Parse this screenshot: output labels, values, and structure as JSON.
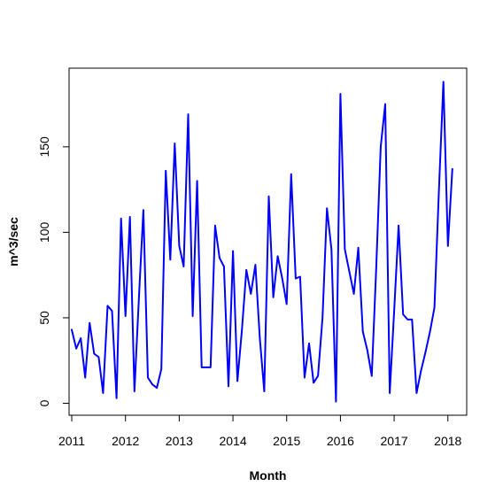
{
  "chart_data": {
    "type": "line",
    "title": "",
    "xlabel": "Month",
    "ylabel": "m^3/sec",
    "xlim": [
      2010.95,
      2018.35
    ],
    "ylim": [
      -7,
      196
    ],
    "xticks": [
      2011,
      2012,
      2013,
      2014,
      2015,
      2016,
      2017,
      2018
    ],
    "xtick_labels": [
      "2011",
      "2012",
      "2013",
      "2014",
      "2015",
      "2016",
      "2017",
      "2018"
    ],
    "yticks": [
      0,
      50,
      100,
      150
    ],
    "ytick_labels": [
      "0",
      "50",
      "100",
      "150"
    ],
    "grid": false,
    "legend": "none",
    "series": [
      {
        "color": "#0000ff",
        "points": [
          [
            2011.0,
            43
          ],
          [
            2011.083,
            32
          ],
          [
            2011.167,
            38
          ],
          [
            2011.25,
            15
          ],
          [
            2011.333,
            47
          ],
          [
            2011.417,
            29
          ],
          [
            2011.5,
            27
          ],
          [
            2011.583,
            6
          ],
          [
            2011.667,
            57
          ],
          [
            2011.75,
            54
          ],
          [
            2011.833,
            3
          ],
          [
            2011.917,
            108
          ],
          [
            2012.0,
            51
          ],
          [
            2012.083,
            109
          ],
          [
            2012.167,
            7
          ],
          [
            2012.25,
            62
          ],
          [
            2012.333,
            113
          ],
          [
            2012.417,
            15
          ],
          [
            2012.5,
            11
          ],
          [
            2012.583,
            9
          ],
          [
            2012.667,
            20
          ],
          [
            2012.75,
            136
          ],
          [
            2012.833,
            84
          ],
          [
            2012.917,
            152
          ],
          [
            2013.0,
            92
          ],
          [
            2013.083,
            80
          ],
          [
            2013.167,
            169
          ],
          [
            2013.25,
            51
          ],
          [
            2013.333,
            130
          ],
          [
            2013.417,
            21
          ],
          [
            2013.5,
            21
          ],
          [
            2013.583,
            21
          ],
          [
            2013.667,
            104
          ],
          [
            2013.75,
            85
          ],
          [
            2013.833,
            80
          ],
          [
            2013.917,
            10
          ],
          [
            2014.0,
            89
          ],
          [
            2014.083,
            13
          ],
          [
            2014.167,
            43
          ],
          [
            2014.25,
            78
          ],
          [
            2014.333,
            64
          ],
          [
            2014.417,
            81
          ],
          [
            2014.5,
            38
          ],
          [
            2014.583,
            7
          ],
          [
            2014.667,
            121
          ],
          [
            2014.75,
            62
          ],
          [
            2014.833,
            86
          ],
          [
            2014.917,
            73
          ],
          [
            2015.0,
            58
          ],
          [
            2015.083,
            134
          ],
          [
            2015.167,
            73
          ],
          [
            2015.25,
            74
          ],
          [
            2015.333,
            15
          ],
          [
            2015.417,
            35
          ],
          [
            2015.5,
            12
          ],
          [
            2015.583,
            16
          ],
          [
            2015.667,
            50
          ],
          [
            2015.75,
            114
          ],
          [
            2015.833,
            90
          ],
          [
            2015.917,
            1
          ],
          [
            2016.0,
            181
          ],
          [
            2016.083,
            90
          ],
          [
            2016.167,
            77
          ],
          [
            2016.25,
            64
          ],
          [
            2016.333,
            91
          ],
          [
            2016.417,
            42
          ],
          [
            2016.5,
            31
          ],
          [
            2016.583,
            16
          ],
          [
            2016.667,
            80
          ],
          [
            2016.75,
            150
          ],
          [
            2016.833,
            175
          ],
          [
            2016.917,
            6
          ],
          [
            2017.0,
            54
          ],
          [
            2017.083,
            104
          ],
          [
            2017.167,
            52
          ],
          [
            2017.25,
            49
          ],
          [
            2017.333,
            49
          ],
          [
            2017.417,
            6
          ],
          [
            2017.5,
            19
          ],
          [
            2017.583,
            30
          ],
          [
            2017.667,
            42
          ],
          [
            2017.75,
            56
          ],
          [
            2017.833,
            124
          ],
          [
            2017.917,
            188
          ],
          [
            2018.0,
            92
          ],
          [
            2018.083,
            137
          ]
        ]
      }
    ]
  }
}
